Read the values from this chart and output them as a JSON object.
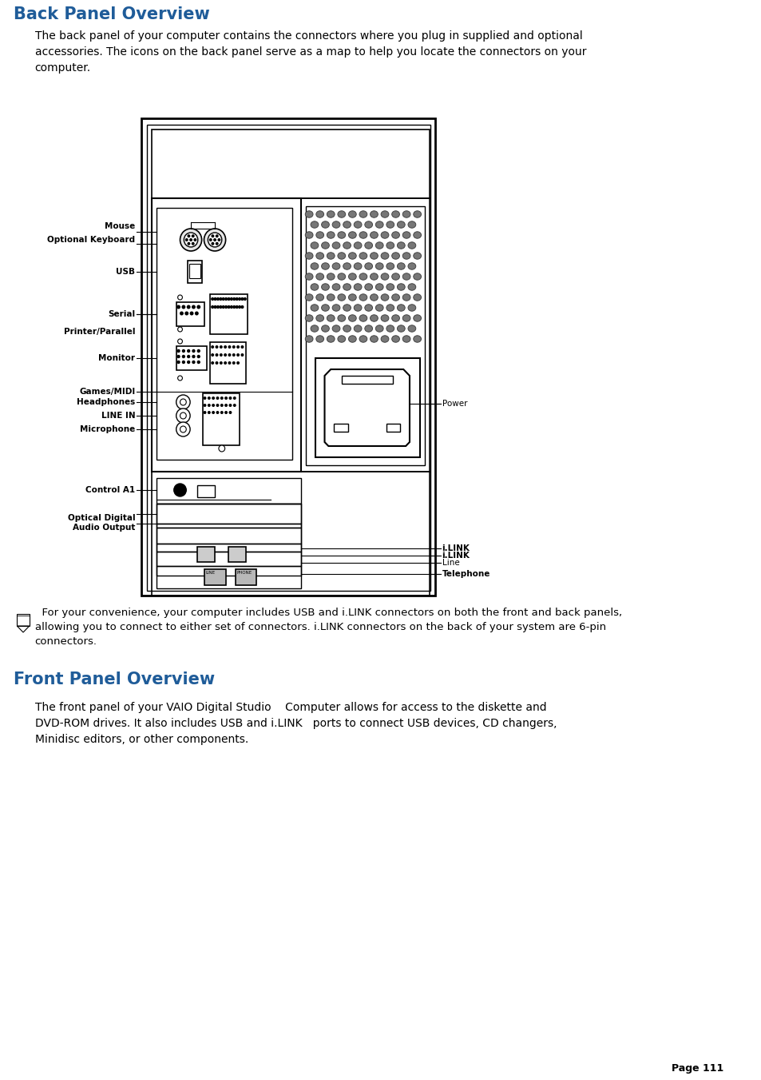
{
  "bg_color": "#ffffff",
  "title1": "Back Panel Overview",
  "title1_color": "#1f5c99",
  "title2": "Front Panel Overview",
  "title2_color": "#1f5c99",
  "para1": "The back panel of your computer contains the connectors where you plug in supplied and optional\naccessories. The icons on the back panel serve as a map to help you locate the connectors on your\ncomputer.",
  "note_text": "  For your convenience, your computer includes USB and i.LINK connectors on both the front and back panels,\nallowing you to connect to either set of connectors. i.LINK connectors on the back of your system are 6-pin\nconnectors.",
  "para2_line1": "The front panel of your VAIO Digital Studio    Computer allows for access to the diskette and",
  "para2_line2": "DVD-ROM drives. It also includes USB and i.LINK   ports to connect USB devices, CD changers,",
  "para2_line3": "Minidisc editors, or other components.",
  "page_num": "Page 111"
}
